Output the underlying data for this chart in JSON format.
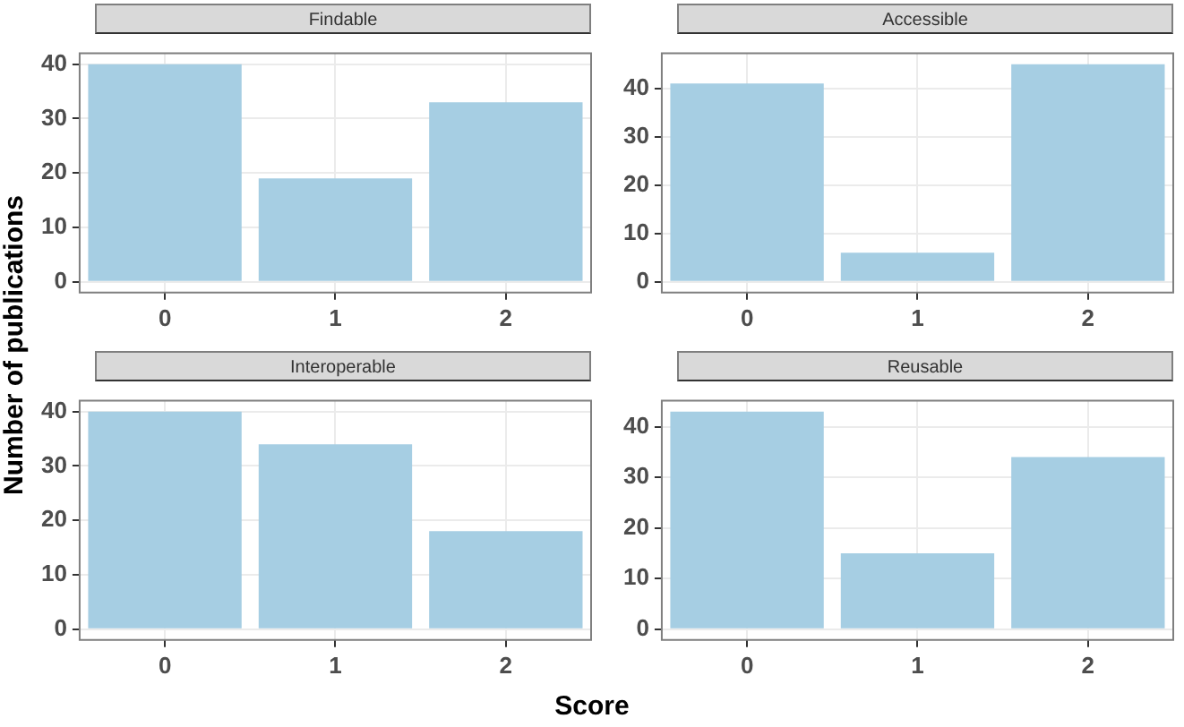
{
  "chart_data": [
    {
      "type": "bar",
      "title": "Findable",
      "ylabel": "Number of publications",
      "categories": [
        "0",
        "1",
        "2"
      ],
      "values": [
        40,
        19,
        33
      ],
      "color": "#a6cee3",
      "ylim": [
        -2,
        42
      ],
      "yticks": [
        0,
        10,
        20,
        30,
        40
      ],
      "grid": true,
      "legend": false
    },
    {
      "type": "bar",
      "title": "Accessible",
      "categories": [
        "0",
        "1",
        "2"
      ],
      "values": [
        41,
        6,
        45
      ],
      "color": "#a6cee3",
      "ylim": [
        -2.25,
        47.25
      ],
      "yticks": [
        0,
        10,
        20,
        30,
        40
      ],
      "grid": true,
      "legend": false
    },
    {
      "type": "bar",
      "title": "Interoperable",
      "categories": [
        "0",
        "1",
        "2"
      ],
      "values": [
        40,
        34,
        18
      ],
      "color": "#a6cee3",
      "ylim": [
        -2,
        42
      ],
      "yticks": [
        0,
        10,
        20,
        30,
        40
      ],
      "grid": true,
      "legend": false
    },
    {
      "type": "bar",
      "title": "Reusable",
      "xlabel": "Score",
      "categories": [
        "0",
        "1",
        "2"
      ],
      "values": [
        43,
        15,
        34
      ],
      "color": "#a6cee3",
      "ylim": [
        -2.15,
        45.15
      ],
      "yticks": [
        0,
        10,
        20,
        30,
        40
      ],
      "grid": true,
      "legend": false
    }
  ]
}
